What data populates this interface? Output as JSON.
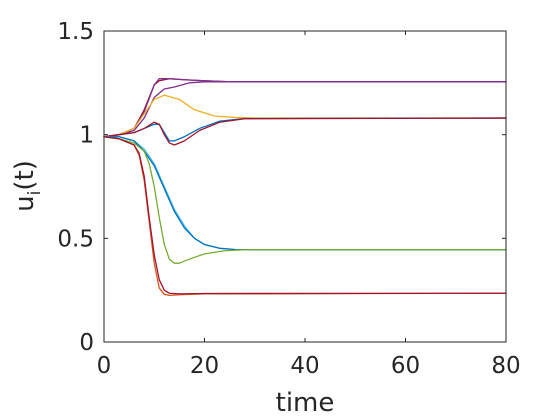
{
  "chart_data": {
    "type": "line",
    "title": "",
    "xlabel": "time",
    "ylabel": "u_i(t)",
    "ylabel_main": "u",
    "ylabel_sub": "i",
    "ylabel_tail": "(t)",
    "xlim": [
      0,
      80
    ],
    "ylim": [
      0,
      1.5
    ],
    "xticks": [
      0,
      20,
      40,
      60,
      80
    ],
    "xtick_labels": [
      "0",
      "20",
      "40",
      "60",
      "80"
    ],
    "yticks": [
      0,
      0.5,
      1,
      1.5
    ],
    "ytick_labels": [
      "0",
      "0.5",
      "1",
      "1.5"
    ],
    "grid": false,
    "legend": "none",
    "series": [
      {
        "color": "#A2142F",
        "x": [
          0,
          3,
          6,
          8,
          10,
          11,
          13,
          16,
          20,
          25,
          30,
          80
        ],
        "y": [
          0.99,
          1.0,
          1.03,
          1.12,
          1.24,
          1.26,
          1.27,
          1.265,
          1.26,
          1.255,
          1.255,
          1.255
        ]
      },
      {
        "color": "#7E2F8E",
        "x": [
          0,
          3,
          6,
          8,
          10,
          11,
          13,
          16,
          20,
          25,
          80
        ],
        "y": [
          0.99,
          1.0,
          1.03,
          1.11,
          1.24,
          1.27,
          1.27,
          1.265,
          1.26,
          1.255,
          1.255
        ]
      },
      {
        "color": "#7E2F8E",
        "x": [
          0,
          3,
          6,
          8,
          10,
          12,
          14,
          17,
          20,
          25,
          80
        ],
        "y": [
          0.99,
          1.0,
          1.02,
          1.08,
          1.18,
          1.22,
          1.23,
          1.25,
          1.255,
          1.255,
          1.255
        ]
      },
      {
        "color": "#EDB120",
        "x": [
          0,
          3,
          6,
          8,
          10,
          12,
          15,
          18,
          22,
          26,
          30,
          80
        ],
        "y": [
          0.99,
          1.0,
          1.03,
          1.1,
          1.17,
          1.19,
          1.17,
          1.12,
          1.09,
          1.083,
          1.08,
          1.08
        ]
      },
      {
        "color": "#0072BD",
        "x": [
          0,
          3,
          6,
          8,
          10,
          11,
          12,
          13,
          14,
          16,
          19,
          23,
          28,
          80
        ],
        "y": [
          0.99,
          1.0,
          1.01,
          1.03,
          1.05,
          1.05,
          1.01,
          0.97,
          0.97,
          0.99,
          1.03,
          1.065,
          1.078,
          1.08
        ]
      },
      {
        "color": "#A2142F",
        "x": [
          0,
          3,
          6,
          8,
          10,
          11,
          12,
          13,
          14,
          16,
          19,
          23,
          28,
          80
        ],
        "y": [
          0.99,
          1.0,
          1.01,
          1.03,
          1.06,
          1.05,
          1.0,
          0.96,
          0.95,
          0.97,
          1.02,
          1.06,
          1.077,
          1.08
        ]
      },
      {
        "color": "#4DBEEE",
        "x": [
          0,
          3,
          6,
          8,
          10,
          12,
          14,
          16,
          18,
          20,
          23,
          26,
          30,
          80
        ],
        "y": [
          0.99,
          0.99,
          0.97,
          0.93,
          0.86,
          0.75,
          0.64,
          0.56,
          0.5,
          0.47,
          0.452,
          0.446,
          0.445,
          0.445
        ]
      },
      {
        "color": "#0072BD",
        "x": [
          0,
          3,
          6,
          8,
          10,
          12,
          14,
          16,
          18,
          20,
          23,
          26,
          30,
          80
        ],
        "y": [
          0.99,
          0.99,
          0.97,
          0.92,
          0.85,
          0.74,
          0.63,
          0.55,
          0.5,
          0.47,
          0.452,
          0.446,
          0.445,
          0.445
        ]
      },
      {
        "color": "#77AC30",
        "x": [
          0,
          3,
          6,
          8,
          9,
          10,
          11,
          12,
          13,
          14,
          15,
          17,
          20,
          24,
          28,
          80
        ],
        "y": [
          0.99,
          0.98,
          0.96,
          0.92,
          0.86,
          0.75,
          0.6,
          0.47,
          0.4,
          0.38,
          0.38,
          0.4,
          0.425,
          0.44,
          0.445,
          0.445
        ]
      },
      {
        "color": "#D95319",
        "x": [
          0,
          3,
          6,
          7,
          8,
          9,
          10,
          11,
          12,
          13,
          15,
          20,
          80
        ],
        "y": [
          0.99,
          0.98,
          0.95,
          0.9,
          0.78,
          0.58,
          0.38,
          0.26,
          0.23,
          0.225,
          0.228,
          0.232,
          0.235
        ]
      },
      {
        "color": "#A2142F",
        "x": [
          0,
          3,
          6,
          7,
          8,
          9,
          10,
          11,
          12,
          13,
          15,
          20,
          80
        ],
        "y": [
          0.99,
          0.98,
          0.95,
          0.91,
          0.8,
          0.6,
          0.42,
          0.3,
          0.25,
          0.235,
          0.232,
          0.234,
          0.235
        ]
      }
    ]
  }
}
